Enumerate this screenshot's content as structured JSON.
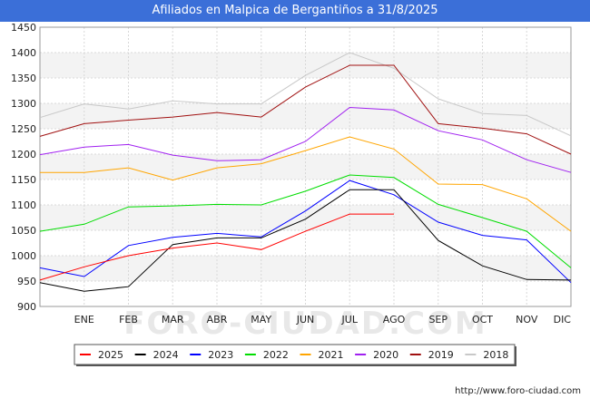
{
  "title": "Afiliados en Malpica de Bergantiños a 31/8/2025",
  "footer_url": "http://www.foro-ciudad.com",
  "watermark": "FORO-CIUDAD.COM",
  "chart_data": {
    "type": "line",
    "categories": [
      "",
      "ENE",
      "FEB",
      "MAR",
      "ABR",
      "MAY",
      "JUN",
      "JUL",
      "AGO",
      "SEP",
      "OCT",
      "NOV",
      "DIC"
    ],
    "ylim": [
      900,
      1450
    ],
    "yticks": [
      900,
      950,
      1000,
      1050,
      1100,
      1150,
      1200,
      1250,
      1300,
      1350,
      1400,
      1450
    ],
    "grid": true,
    "legend_position": "bottom",
    "series": [
      {
        "name": "2025",
        "color": "#ff0000",
        "values": [
          952,
          978,
          1000,
          1015,
          1025,
          1012,
          1048,
          1082,
          1082,
          null,
          null,
          null,
          null
        ]
      },
      {
        "name": "2024",
        "color": "#000000",
        "values": [
          947,
          930,
          939,
          1022,
          1035,
          1035,
          1072,
          1130,
          1130,
          1030,
          980,
          953,
          952
        ]
      },
      {
        "name": "2023",
        "color": "#0000ff",
        "values": [
          976,
          959,
          1020,
          1036,
          1044,
          1037,
          1088,
          1148,
          1120,
          1066,
          1040,
          1031,
          947
        ]
      },
      {
        "name": "2022",
        "color": "#00dd00",
        "values": [
          1048,
          1062,
          1096,
          1098,
          1101,
          1100,
          1127,
          1159,
          1154,
          1101,
          1075,
          1048,
          976
        ]
      },
      {
        "name": "2021",
        "color": "#ffa500",
        "values": [
          1164,
          1164,
          1173,
          1149,
          1173,
          1181,
          1207,
          1234,
          1210,
          1141,
          1140,
          1112,
          1048
        ]
      },
      {
        "name": "2020",
        "color": "#a020f0",
        "values": [
          1199,
          1214,
          1219,
          1198,
          1187,
          1189,
          1225,
          1292,
          1287,
          1246,
          1228,
          1189,
          1164
        ]
      },
      {
        "name": "2019",
        "color": "#a01010",
        "values": [
          1235,
          1260,
          1267,
          1273,
          1282,
          1273,
          1332,
          1375,
          1375,
          1260,
          1251,
          1240,
          1200
        ]
      },
      {
        "name": "2018",
        "color": "#c8c8c8",
        "values": [
          1272,
          1299,
          1289,
          1305,
          1299,
          1299,
          1355,
          1400,
          1369,
          1309,
          1280,
          1276,
          1236
        ]
      }
    ]
  }
}
